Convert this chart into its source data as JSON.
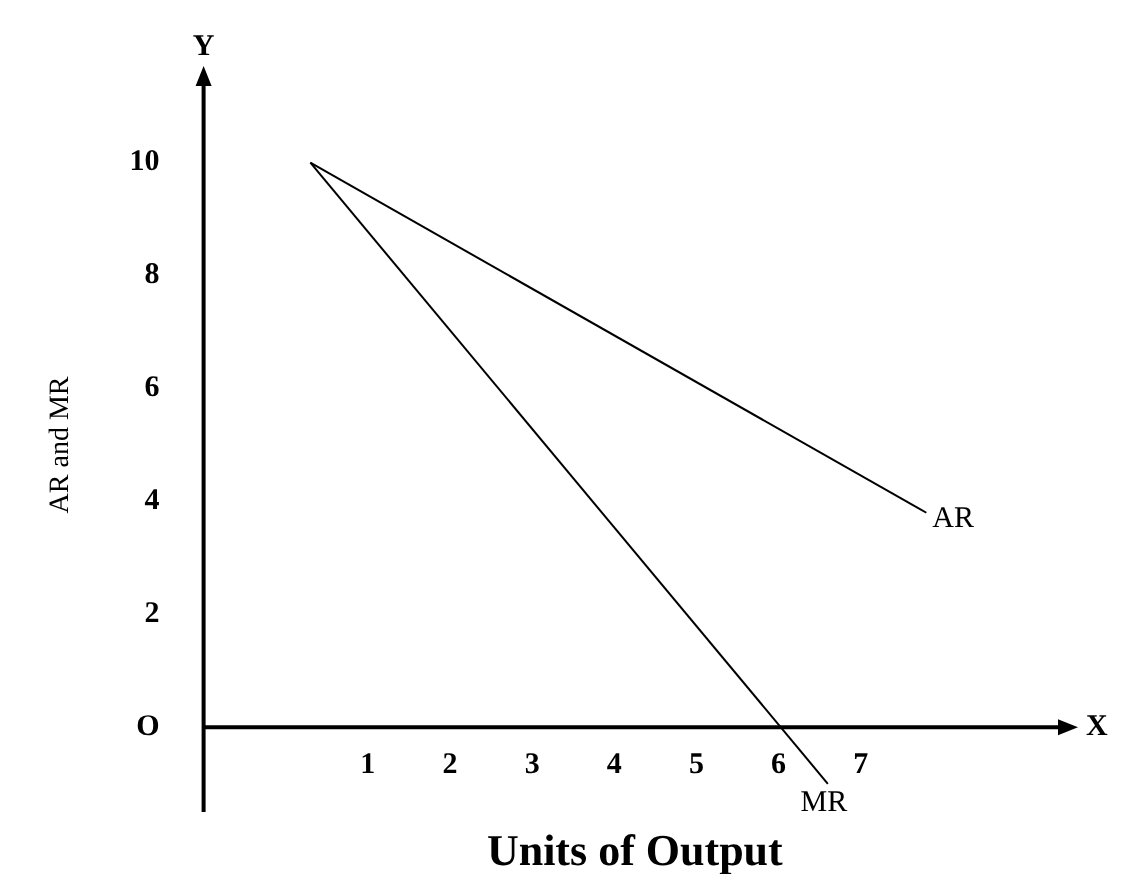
{
  "chart_data": {
    "type": "line",
    "xlabel": "Units of Output",
    "ylabel": "AR and MR",
    "annotations": [
      "Y",
      "X"
    ],
    "series": [
      {
        "name": "AR",
        "color": "#000000",
        "x": [
          0.3,
          7.8
        ],
        "values": [
          10,
          3.8
        ]
      },
      {
        "name": "MR",
        "color": "#000000",
        "x": [
          0.3,
          6.6
        ],
        "values": [
          10,
          -1
        ]
      }
    ],
    "xlim": [
      -1,
      9.5
    ],
    "ylim": [
      -1.5,
      11.5
    ],
    "xticks": [
      1,
      2,
      3,
      4,
      5,
      6,
      7
    ],
    "yticks": [
      {
        "value": 0,
        "label": "O"
      },
      2,
      4,
      6,
      8,
      10
    ],
    "grid": false,
    "legend": false,
    "marker": "none",
    "line_style": "solid"
  }
}
